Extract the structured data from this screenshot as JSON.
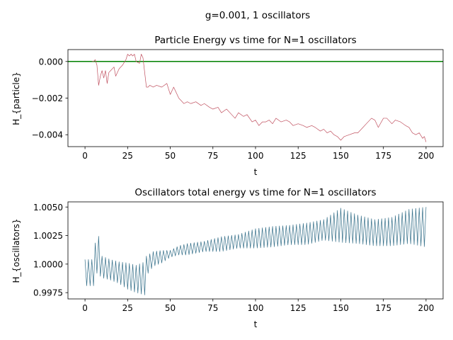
{
  "suptitle": "g=0.001, 1 oscillators",
  "chart_data": [
    {
      "type": "line",
      "title": "Particle Energy vs time for N=1 oscillators",
      "xlabel": "t",
      "ylabel": "H_{particle}",
      "xlim": [
        -10,
        210
      ],
      "ylim": [
        -0.00465,
        0.00065
      ],
      "xticks": [
        0,
        25,
        50,
        75,
        100,
        125,
        150,
        175,
        200
      ],
      "xtick_labels": [
        "0",
        "25",
        "50",
        "75",
        "100",
        "125",
        "150",
        "175",
        "200"
      ],
      "yticks": [
        0.0,
        -0.002,
        -0.004
      ],
      "ytick_labels": [
        "0.000",
        "−0.002",
        "−0.004"
      ],
      "grid": false,
      "colors": {
        "series": "#c0505f",
        "reference": "#008000"
      },
      "reference_line": {
        "y": 0.0,
        "x_range": [
          -10,
          210
        ]
      },
      "series": [
        {
          "x": [
            4,
            5,
            6,
            7,
            8,
            9,
            10,
            11,
            12,
            13,
            14,
            15,
            17,
            18,
            20,
            22,
            24,
            25,
            26,
            27,
            28,
            29,
            30,
            32,
            33,
            34,
            35,
            36,
            37,
            38,
            40,
            42,
            45,
            48,
            50,
            52,
            55,
            58,
            60,
            62,
            65,
            68,
            70,
            73,
            75,
            78,
            80,
            83,
            85,
            88,
            90,
            93,
            95,
            98,
            100,
            102,
            104,
            106,
            108,
            110,
            112,
            115,
            118,
            120,
            122,
            125,
            128,
            130,
            133,
            135,
            138,
            140,
            142,
            144,
            146,
            148,
            150,
            152,
            155,
            158,
            160,
            163,
            165,
            168,
            170,
            172,
            175,
            177,
            180,
            182,
            185,
            188,
            190,
            192,
            194,
            196,
            198,
            199,
            200
          ],
          "values": [
            0.0,
            0.0,
            0.0001,
            -0.0002,
            -0.0013,
            -0.0008,
            -0.0005,
            -0.0009,
            -0.0005,
            -0.0012,
            -0.0006,
            -0.0005,
            -0.0003,
            -0.0008,
            -0.0004,
            -0.0002,
            0.0001,
            0.0004,
            0.0003,
            0.0004,
            0.0003,
            0.0004,
            0.0,
            -0.0001,
            0.0004,
            0.0002,
            -0.0006,
            -0.0014,
            -0.0014,
            -0.0013,
            -0.0014,
            -0.0013,
            -0.0014,
            -0.0012,
            -0.0018,
            -0.0014,
            -0.002,
            -0.0023,
            -0.0022,
            -0.0023,
            -0.0022,
            -0.0024,
            -0.0023,
            -0.0025,
            -0.0026,
            -0.0025,
            -0.0028,
            -0.0026,
            -0.0028,
            -0.0031,
            -0.0028,
            -0.003,
            -0.0029,
            -0.0033,
            -0.0032,
            -0.0035,
            -0.0033,
            -0.0033,
            -0.0032,
            -0.0034,
            -0.0031,
            -0.0033,
            -0.0032,
            -0.0033,
            -0.0035,
            -0.0034,
            -0.0035,
            -0.0036,
            -0.0035,
            -0.0036,
            -0.0038,
            -0.0037,
            -0.0039,
            -0.0038,
            -0.004,
            -0.0041,
            -0.0043,
            -0.0041,
            -0.004,
            -0.0039,
            -0.0039,
            -0.0036,
            -0.0034,
            -0.0031,
            -0.0032,
            -0.0036,
            -0.0031,
            -0.0031,
            -0.0034,
            -0.0032,
            -0.0033,
            -0.0035,
            -0.0036,
            -0.0039,
            -0.004,
            -0.0039,
            -0.0042,
            -0.0041,
            -0.0044
          ]
        }
      ]
    },
    {
      "type": "line",
      "title": "Oscillators total energy vs time for N=1 oscillators",
      "xlabel": "t",
      "ylabel": "H_{oscillators}",
      "xlim": [
        -10,
        210
      ],
      "ylim": [
        0.99695,
        1.00545
      ],
      "xticks": [
        0,
        25,
        50,
        75,
        100,
        125,
        150,
        175,
        200
      ],
      "xtick_labels": [
        "0",
        "25",
        "50",
        "75",
        "100",
        "125",
        "150",
        "175",
        "200"
      ],
      "yticks": [
        0.9975,
        1.0,
        1.0025,
        1.005
      ],
      "ytick_labels": [
        "0.9975",
        "1.0000",
        "1.0025",
        "1.0050"
      ],
      "grid": false,
      "colors": {
        "series": "#336e88"
      },
      "series": [
        {
          "period": 2.0,
          "x": [
            0,
            5,
            7,
            10,
            15,
            20,
            25,
            30,
            35,
            36,
            40,
            45,
            50,
            55,
            60,
            70,
            80,
            90,
            100,
            110,
            120,
            130,
            140,
            150,
            160,
            170,
            180,
            190,
            200
          ],
          "upper": [
            1.0004,
            1.0004,
            1.0033,
            1.0007,
            1.0004,
            1.0002,
            1.0001,
            0.9999,
            1.0002,
            1.0007,
            1.0011,
            1.0012,
            1.0012,
            1.0016,
            1.0018,
            1.002,
            1.0024,
            1.0026,
            1.0031,
            1.0033,
            1.0034,
            1.0036,
            1.0039,
            1.0049,
            1.0043,
            1.0039,
            1.0041,
            1.0048,
            1.005
          ],
          "lower": [
            0.9981,
            0.9981,
            0.9992,
            0.9988,
            0.9986,
            0.9983,
            0.9978,
            0.9975,
            0.9973,
            0.999,
            0.9998,
            1.0001,
            1.0006,
            1.0008,
            1.0008,
            1.0011,
            1.0011,
            1.0014,
            1.0014,
            1.0015,
            1.0017,
            1.0017,
            1.0021,
            1.0019,
            1.0018,
            1.0016,
            1.0016,
            1.0018,
            1.0015
          ]
        }
      ]
    }
  ]
}
